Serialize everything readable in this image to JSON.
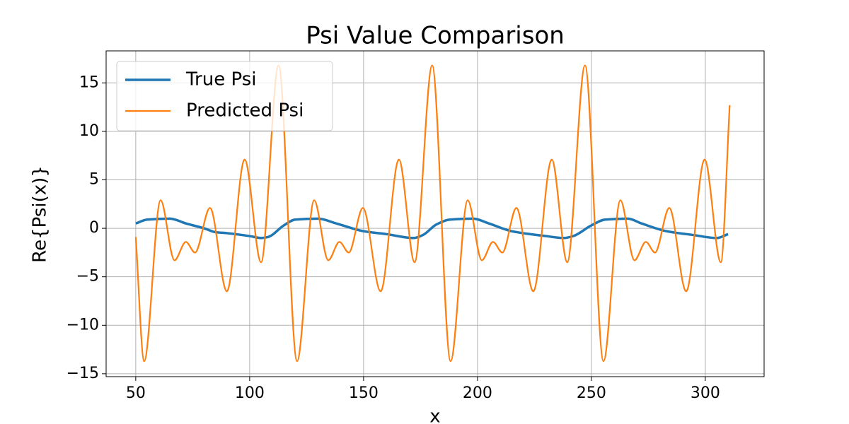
{
  "chart_data": {
    "type": "line",
    "title": "Psi Value Comparison",
    "x_label": "x",
    "y_label": "Re{Psi(x)}",
    "xlim": [
      37,
      325.8
    ],
    "ylim": [
      -15.3,
      18.3
    ],
    "xticks": [
      50,
      100,
      150,
      200,
      250,
      300
    ],
    "yticks": [
      {
        "value": -15,
        "label": "−15"
      },
      {
        "value": -10,
        "label": "−10"
      },
      {
        "value": -5,
        "label": "−5"
      },
      0,
      5,
      10,
      15
    ],
    "grid": true,
    "legend": "upper left",
    "series": [
      {
        "name": "True Psi",
        "color": "#1f77b4",
        "width": 3.5,
        "x": [
          50,
          55,
          65,
          72,
          80,
          85,
          90,
          100,
          105,
          108,
          115,
          120,
          130,
          138,
          150,
          160,
          172,
          176,
          182,
          188,
          198,
          205,
          215,
          230,
          238,
          242,
          250,
          256,
          266,
          272,
          283,
          295,
          305,
          310
        ],
        "values": [
          0.5,
          0.9,
          1.0,
          0.5,
          0,
          -0.4,
          -0.5,
          -0.8,
          -1.0,
          -0.9,
          0.3,
          0.9,
          1.0,
          0.5,
          -0.3,
          -0.6,
          -1.0,
          -0.7,
          0.4,
          0.9,
          1.0,
          0.5,
          -0.3,
          -0.8,
          -1.0,
          -0.8,
          0.3,
          0.9,
          1.0,
          0.5,
          -0.3,
          -0.7,
          -1.0,
          -0.6
        ]
      },
      {
        "name": "Predicted Psi",
        "color": "#ff7f0e",
        "width": 2.2,
        "x": [
          50,
          53.7,
          60.9,
          67,
          72,
          76,
          82.6,
          90,
          97.8,
          105,
          112.7,
          120.8,
          128.3,
          134.5,
          139.4,
          143.5,
          149.7,
          157.5,
          165.5,
          172.4,
          180.1,
          188.2,
          195.7,
          201.9,
          206.8,
          210.9,
          217.1,
          224.5,
          232.6,
          239.4,
          247.2,
          255.3,
          262.7,
          268.9,
          273.9,
          277.9,
          284.2,
          291.6,
          299.7,
          306.8,
          310.7
        ],
        "values": [
          -0.9,
          -13.7,
          2.9,
          -3.3,
          -1.4,
          -2.5,
          2.1,
          -6.5,
          7.1,
          -3.5,
          16.8,
          -13.7,
          2.9,
          -3.3,
          -1.4,
          -2.5,
          2.1,
          -6.5,
          7.1,
          -3.5,
          16.8,
          -13.7,
          2.9,
          -3.3,
          -1.4,
          -2.5,
          2.1,
          -6.5,
          7.1,
          -3.5,
          16.8,
          -13.7,
          2.9,
          -3.3,
          -1.4,
          -2.5,
          2.1,
          -6.5,
          7.1,
          -3.5,
          12.7
        ]
      }
    ]
  }
}
